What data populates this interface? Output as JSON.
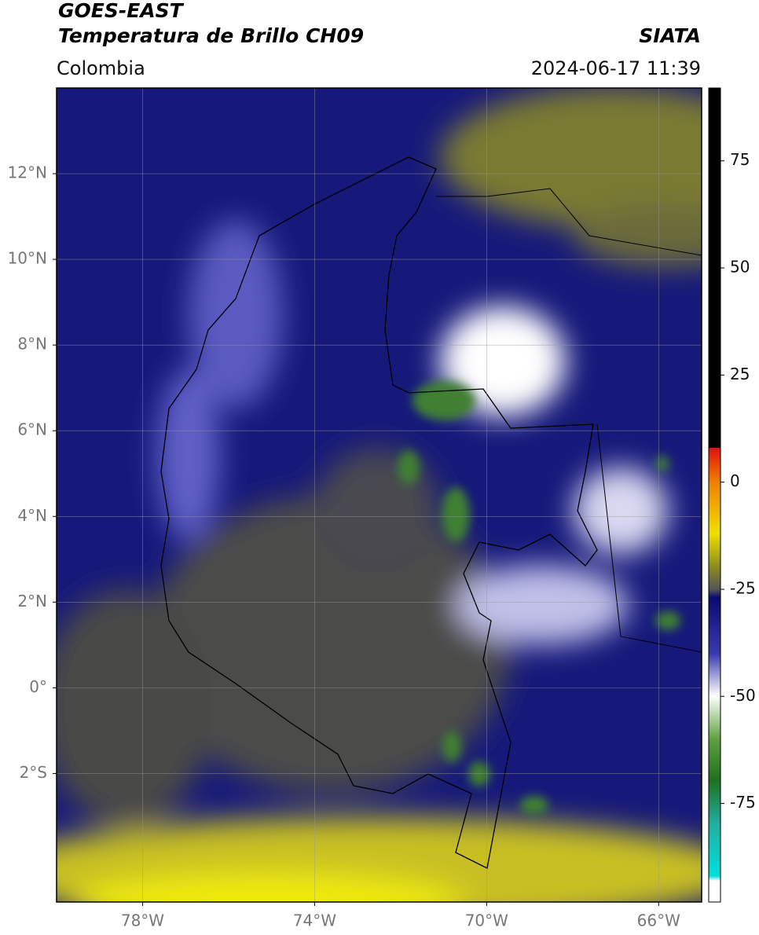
{
  "header": {
    "title": "GOES-EAST",
    "subtitle": "Temperatura de Brillo CH09",
    "source": "SIATA",
    "region": "Colombia",
    "datetime": "2024-06-17 11:39"
  },
  "map": {
    "xlim": [
      -80,
      -65
    ],
    "ylim": [
      -5,
      14
    ],
    "xticks": [
      {
        "value": -78,
        "label": "78°W"
      },
      {
        "value": -74,
        "label": "74°W"
      },
      {
        "value": -70,
        "label": "70°W"
      },
      {
        "value": -66,
        "label": "66°W"
      }
    ],
    "yticks": [
      {
        "value": 12,
        "label": "12°N"
      },
      {
        "value": 10,
        "label": "10°N"
      },
      {
        "value": 8,
        "label": "8°N"
      },
      {
        "value": 6,
        "label": "6°N"
      },
      {
        "value": 4,
        "label": "4°N"
      },
      {
        "value": 2,
        "label": "2°N"
      },
      {
        "value": 0,
        "label": "0°"
      },
      {
        "value": -2,
        "label": "2°S"
      }
    ],
    "grid": true
  },
  "colorbar": {
    "lim": [
      -98,
      92
    ],
    "ticks": [
      75,
      50,
      25,
      0,
      -25,
      -50,
      -75
    ]
  }
}
